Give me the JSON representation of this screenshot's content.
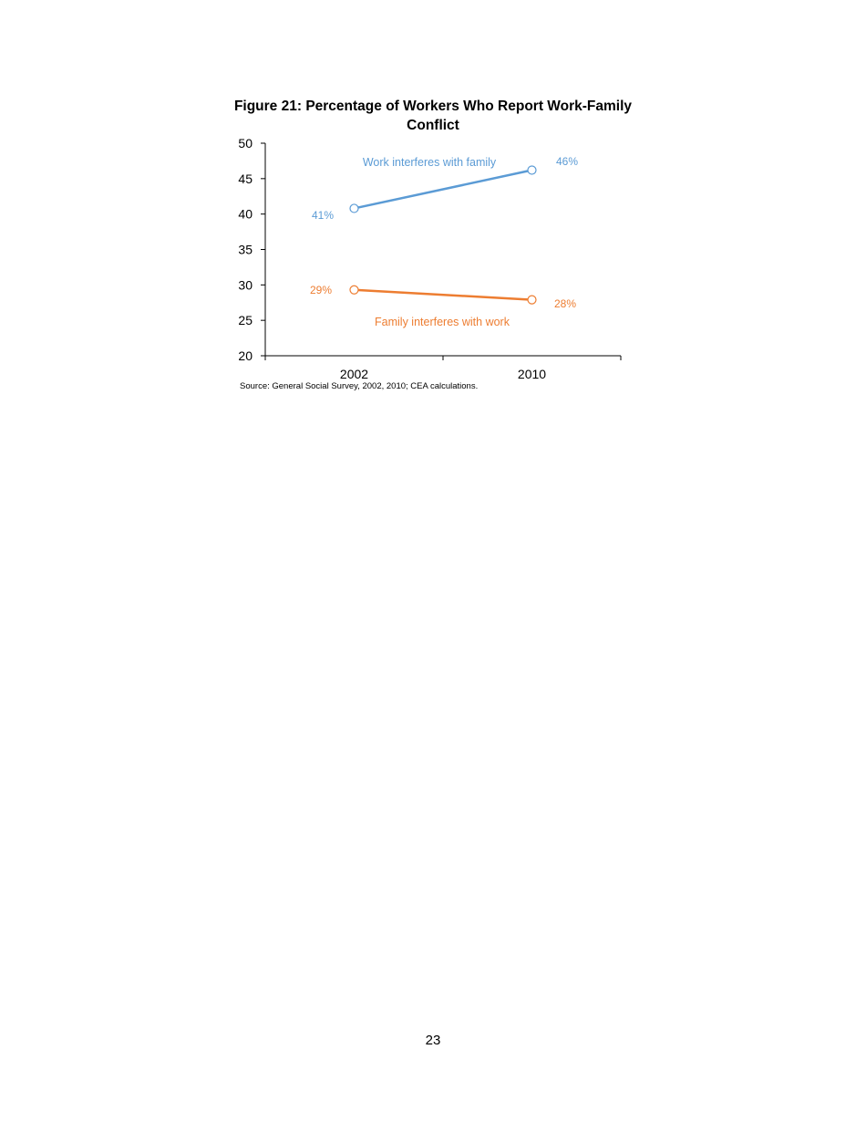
{
  "figure": {
    "title": "Figure 21: Percentage of Workers Who Report Work-Family Conflict",
    "source": "Source: General Social Survey, 2002, 2010; CEA calculations."
  },
  "page": {
    "number": "23"
  },
  "colors": {
    "work_family": "#5B9BD5",
    "family_work": "#ED7D31",
    "axis": "#000000"
  },
  "chart_data": {
    "type": "line",
    "title": "Figure 21: Percentage of Workers Who Report Work-Family Conflict",
    "xlabel": "",
    "ylabel": "",
    "categories": [
      "2002",
      "2010"
    ],
    "ylim": [
      20,
      50
    ],
    "yticks": [
      20,
      25,
      30,
      35,
      40,
      45,
      50
    ],
    "grid": false,
    "legend": "inline labels",
    "series": [
      {
        "name": "Work interferes with family",
        "values": [
          40.8,
          46.2
        ],
        "labels": [
          "41%",
          "46%"
        ],
        "color": "#5B9BD5"
      },
      {
        "name": "Family interferes with work",
        "values": [
          29.3,
          27.9
        ],
        "labels": [
          "29%",
          "28%"
        ],
        "color": "#ED7D31"
      }
    ],
    "source": "Source: General Social Survey, 2002, 2010; CEA calculations."
  }
}
